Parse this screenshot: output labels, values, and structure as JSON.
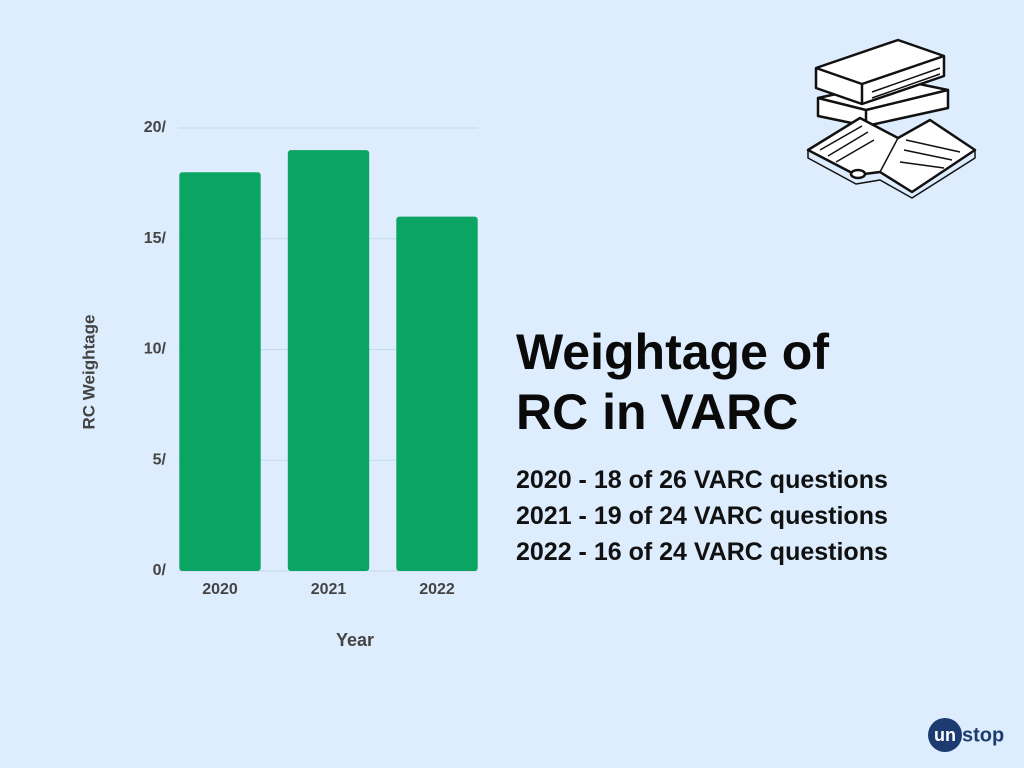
{
  "chart_data": {
    "type": "bar",
    "title": "Weightage of RC in VARC",
    "notes": [
      "2020 - 18 of 26 VARC questions",
      "2021 - 19 of 24 VARC questions",
      "2022 - 16 of 24 VARC questions"
    ],
    "x_label": "Year",
    "y_label": "RC Weightage",
    "categories": [
      "2020",
      "2021",
      "2022"
    ],
    "values": [
      18,
      19,
      16
    ],
    "color": "#0aa463",
    "ylim": [
      0,
      20
    ],
    "yticks": [
      {
        "value": 0,
        "label": "0/"
      },
      {
        "value": 5,
        "label": "5/"
      },
      {
        "value": 10,
        "label": "10/"
      },
      {
        "value": 15,
        "label": "15/"
      },
      {
        "value": 20,
        "label": "20/"
      }
    ],
    "grid": true
  },
  "logo": {
    "badge": "un",
    "text": "stop"
  }
}
